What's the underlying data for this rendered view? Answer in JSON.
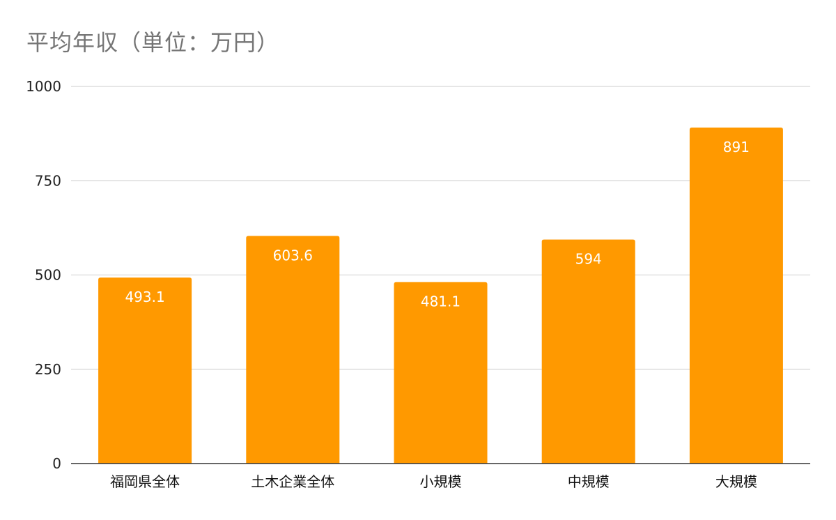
{
  "chart_data": {
    "type": "bar",
    "title": "平均年収（単位：万円）",
    "categories": [
      "福岡県全体",
      "土木企業全体",
      "小規模",
      "中規模",
      "大規模"
    ],
    "values": [
      493.1,
      603.6,
      481.1,
      594,
      891
    ],
    "value_labels": [
      "493.1",
      "603.6",
      "481.1",
      "594",
      "891"
    ],
    "xlabel": "",
    "ylabel": "",
    "ylim": [
      0,
      1000
    ],
    "yticks": [
      0,
      250,
      500,
      750,
      1000
    ],
    "grid": true,
    "legend": "none",
    "bar_color": "#ff9900",
    "label_color": "#ffffff",
    "grid_color": "#cccccc",
    "axis_color": "#333333",
    "title_color": "#757575"
  }
}
